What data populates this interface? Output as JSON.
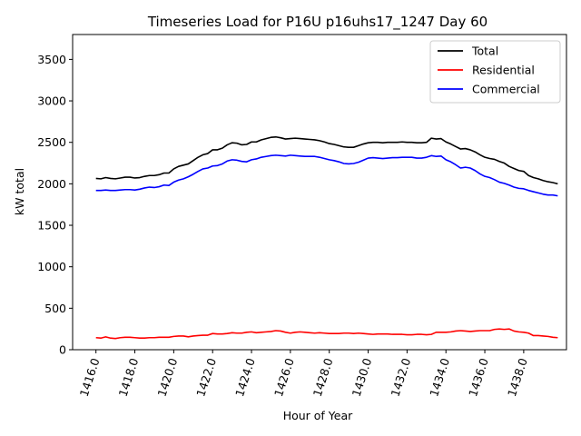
{
  "chart_data": {
    "type": "line",
    "title": "Timeseries Load for P16U p16uhs17_1247  Day 60",
    "xlabel": "Hour of Year",
    "ylabel": "kW total",
    "xlim": [
      1414.8,
      1440.2
    ],
    "ylim": [
      0,
      3800
    ],
    "xticks": [
      1416,
      1418,
      1420,
      1422,
      1424,
      1426,
      1428,
      1430,
      1432,
      1434,
      1436,
      1438
    ],
    "xtick_labels": [
      "1416.0",
      "1418.0",
      "1420.0",
      "1422.0",
      "1424.0",
      "1426.0",
      "1428.0",
      "1430.0",
      "1432.0",
      "1434.0",
      "1436.0",
      "1438.0"
    ],
    "yticks": [
      0,
      500,
      1000,
      1500,
      2000,
      2500,
      3000,
      3500
    ],
    "ytick_labels": [
      "0",
      "500",
      "1000",
      "1500",
      "2000",
      "2500",
      "3000",
      "3500"
    ],
    "grid": false,
    "legend_position": "top-right",
    "x": [
      1416.0,
      1416.25,
      1416.5,
      1416.75,
      1417.0,
      1417.25,
      1417.5,
      1417.75,
      1418.0,
      1418.25,
      1418.5,
      1418.75,
      1419.0,
      1419.25,
      1419.5,
      1419.75,
      1420.0,
      1420.25,
      1420.5,
      1420.75,
      1421.0,
      1421.25,
      1421.5,
      1421.75,
      1422.0,
      1422.25,
      1422.5,
      1422.75,
      1423.0,
      1423.25,
      1423.5,
      1423.75,
      1424.0,
      1424.25,
      1424.5,
      1424.75,
      1425.0,
      1425.25,
      1425.5,
      1425.75,
      1426.0,
      1426.25,
      1426.5,
      1426.75,
      1427.0,
      1427.25,
      1427.5,
      1427.75,
      1428.0,
      1428.25,
      1428.5,
      1428.75,
      1429.0,
      1429.25,
      1429.5,
      1429.75,
      1430.0,
      1430.25,
      1430.5,
      1430.75,
      1431.0,
      1431.25,
      1431.5,
      1431.75,
      1432.0,
      1432.25,
      1432.5,
      1432.75,
      1433.0,
      1433.25,
      1433.5,
      1433.75,
      1434.0,
      1434.25,
      1434.5,
      1434.75,
      1435.0,
      1435.25,
      1435.5,
      1435.75,
      1436.0,
      1436.25,
      1436.5,
      1436.75,
      1437.0,
      1437.25,
      1437.5,
      1437.75,
      1438.0,
      1438.25,
      1438.5,
      1438.75,
      1439.0,
      1439.25,
      1439.5,
      1439.75
    ],
    "series": [
      {
        "name": "Total",
        "color": "#000000",
        "values": [
          2065,
          2060,
          2075,
          2065,
          2060,
          2070,
          2080,
          2080,
          2070,
          2075,
          2090,
          2100,
          2100,
          2110,
          2130,
          2130,
          2180,
          2210,
          2225,
          2240,
          2280,
          2320,
          2350,
          2365,
          2410,
          2410,
          2430,
          2470,
          2495,
          2490,
          2470,
          2475,
          2505,
          2505,
          2530,
          2545,
          2560,
          2565,
          2555,
          2540,
          2545,
          2550,
          2545,
          2540,
          2535,
          2530,
          2520,
          2505,
          2485,
          2475,
          2460,
          2445,
          2440,
          2440,
          2460,
          2480,
          2495,
          2500,
          2500,
          2495,
          2500,
          2500,
          2500,
          2505,
          2500,
          2500,
          2495,
          2495,
          2500,
          2550,
          2540,
          2545,
          2505,
          2480,
          2450,
          2420,
          2425,
          2410,
          2385,
          2350,
          2320,
          2305,
          2295,
          2270,
          2250,
          2210,
          2185,
          2160,
          2150,
          2100,
          2075,
          2060,
          2040,
          2025,
          2015,
          2000
        ]
      },
      {
        "name": "Residential",
        "color": "#ff0000",
        "values": [
          145,
          140,
          155,
          140,
          135,
          145,
          150,
          150,
          145,
          140,
          140,
          145,
          145,
          150,
          150,
          150,
          160,
          165,
          165,
          155,
          165,
          170,
          175,
          175,
          195,
          190,
          190,
          195,
          205,
          200,
          200,
          210,
          215,
          205,
          210,
          215,
          220,
          230,
          225,
          210,
          200,
          210,
          215,
          210,
          205,
          200,
          205,
          200,
          195,
          195,
          195,
          200,
          200,
          195,
          200,
          195,
          190,
          185,
          190,
          190,
          190,
          185,
          185,
          185,
          180,
          180,
          185,
          185,
          180,
          185,
          210,
          210,
          210,
          215,
          225,
          230,
          225,
          220,
          225,
          230,
          230,
          230,
          245,
          250,
          245,
          250,
          225,
          215,
          210,
          200,
          170,
          170,
          165,
          160,
          150,
          145
        ]
      },
      {
        "name": "Commercial",
        "color": "#0000ff",
        "values": [
          1920,
          1920,
          1925,
          1920,
          1920,
          1925,
          1930,
          1930,
          1925,
          1935,
          1950,
          1960,
          1955,
          1965,
          1985,
          1980,
          2020,
          2045,
          2060,
          2085,
          2115,
          2150,
          2180,
          2190,
          2215,
          2220,
          2240,
          2275,
          2290,
          2285,
          2270,
          2265,
          2290,
          2300,
          2320,
          2330,
          2340,
          2345,
          2340,
          2335,
          2345,
          2340,
          2335,
          2330,
          2330,
          2330,
          2320,
          2305,
          2290,
          2280,
          2265,
          2245,
          2240,
          2245,
          2260,
          2285,
          2310,
          2315,
          2310,
          2305,
          2310,
          2315,
          2315,
          2320,
          2320,
          2320,
          2310,
          2310,
          2320,
          2340,
          2330,
          2335,
          2290,
          2265,
          2230,
          2190,
          2200,
          2190,
          2160,
          2120,
          2090,
          2075,
          2050,
          2020,
          2005,
          1985,
          1960,
          1945,
          1940,
          1920,
          1905,
          1890,
          1875,
          1865,
          1865,
          1855
        ]
      }
    ]
  }
}
